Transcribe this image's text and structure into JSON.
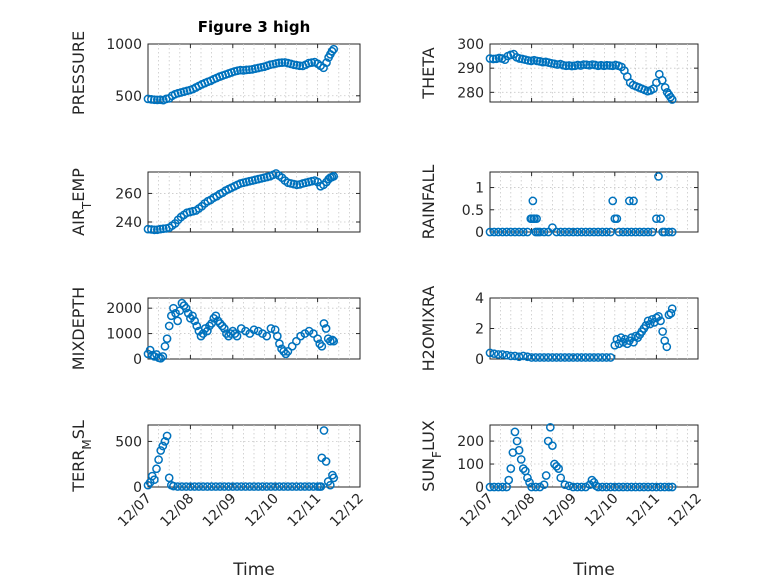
{
  "chart_data": [
    {
      "id": "pressure",
      "type": "scatter",
      "title": "Figure 3 high",
      "ylabel": "PRESSURE",
      "ylim": [
        440,
        1000
      ],
      "yticks": [
        500,
        1000
      ],
      "xlim": [
        0,
        5
      ],
      "xtick_labels": [],
      "xlabel": "",
      "x": [
        0.0,
        0.08,
        0.15,
        0.22,
        0.29,
        0.36,
        0.43,
        0.5,
        0.57,
        0.64,
        0.71,
        0.78,
        0.85,
        0.92,
        0.99,
        1.06,
        1.13,
        1.2,
        1.27,
        1.34,
        1.41,
        1.48,
        1.55,
        1.62,
        1.69,
        1.76,
        1.83,
        1.9,
        1.97,
        2.04,
        2.11,
        2.18,
        2.25,
        2.32,
        2.39,
        2.46,
        2.53,
        2.6,
        2.67,
        2.74,
        2.81,
        2.88,
        2.95,
        3.02,
        3.09,
        3.16,
        3.23,
        3.3,
        3.37,
        3.44,
        3.51,
        3.58,
        3.65,
        3.72,
        3.79,
        3.86,
        3.93,
        4.0,
        4.07,
        4.14,
        4.21,
        4.26,
        4.3,
        4.34,
        4.38
      ],
      "y": [
        470,
        465,
        462,
        460,
        462,
        458,
        470,
        475,
        500,
        515,
        525,
        532,
        540,
        548,
        555,
        565,
        580,
        595,
        610,
        622,
        635,
        645,
        660,
        672,
        685,
        695,
        705,
        715,
        725,
        735,
        742,
        748,
        745,
        750,
        752,
        755,
        762,
        768,
        775,
        780,
        790,
        800,
        805,
        812,
        818,
        820,
        822,
        815,
        808,
        800,
        795,
        790,
        788,
        800,
        815,
        820,
        825,
        810,
        790,
        770,
        820,
        870,
        900,
        930,
        950
      ]
    },
    {
      "id": "theta",
      "type": "scatter",
      "title": "",
      "ylabel": "THETA",
      "ylim": [
        276,
        300
      ],
      "yticks": [
        280,
        290,
        300
      ],
      "xlim": [
        0,
        5
      ],
      "xtick_labels": [],
      "xlabel": "",
      "x": [
        0.0,
        0.08,
        0.15,
        0.22,
        0.29,
        0.36,
        0.43,
        0.5,
        0.57,
        0.64,
        0.71,
        0.78,
        0.85,
        0.92,
        0.99,
        1.06,
        1.13,
        1.2,
        1.27,
        1.34,
        1.41,
        1.48,
        1.55,
        1.62,
        1.69,
        1.76,
        1.83,
        1.9,
        1.97,
        2.04,
        2.11,
        2.18,
        2.25,
        2.32,
        2.39,
        2.46,
        2.53,
        2.6,
        2.67,
        2.74,
        2.81,
        2.88,
        2.95,
        3.02,
        3.09,
        3.16,
        3.23,
        3.3,
        3.37,
        3.44,
        3.51,
        3.58,
        3.65,
        3.72,
        3.79,
        3.86,
        3.93,
        4.0,
        4.07,
        4.14,
        4.21,
        4.26,
        4.3,
        4.34,
        4.38
      ],
      "y": [
        294.0,
        293.8,
        293.9,
        294.2,
        294.0,
        293.5,
        295.0,
        295.5,
        295.8,
        294.5,
        294.0,
        293.8,
        293.5,
        293.2,
        293.0,
        293.3,
        293.0,
        292.8,
        292.5,
        292.6,
        292.3,
        292.0,
        291.8,
        291.5,
        291.7,
        291.2,
        291.0,
        291.1,
        290.9,
        291.0,
        291.3,
        291.1,
        291.5,
        291.4,
        291.2,
        291.5,
        291.3,
        291.0,
        291.2,
        291.0,
        291.2,
        291.1,
        291.0,
        291.3,
        291.0,
        290.5,
        289.0,
        286.5,
        284.0,
        283.0,
        282.5,
        282.0,
        281.5,
        281.0,
        280.5,
        280.8,
        281.5,
        284.0,
        287.5,
        285.0,
        282.0,
        280.0,
        279.0,
        278.0,
        277.0
      ]
    },
    {
      "id": "air_temp",
      "type": "scatter",
      "title": "",
      "ylabel_parts": [
        "AIR",
        "T",
        "EMP"
      ],
      "ylim": [
        233,
        275
      ],
      "yticks": [
        240,
        260
      ],
      "xlim": [
        0,
        5
      ],
      "xtick_labels": [],
      "xlabel": "",
      "x": [
        0.0,
        0.08,
        0.15,
        0.22,
        0.29,
        0.36,
        0.43,
        0.5,
        0.57,
        0.64,
        0.71,
        0.78,
        0.85,
        0.92,
        0.99,
        1.06,
        1.13,
        1.2,
        1.27,
        1.34,
        1.41,
        1.48,
        1.55,
        1.62,
        1.69,
        1.76,
        1.83,
        1.9,
        1.97,
        2.04,
        2.11,
        2.18,
        2.25,
        2.32,
        2.39,
        2.46,
        2.53,
        2.6,
        2.67,
        2.74,
        2.81,
        2.88,
        2.95,
        3.02,
        3.09,
        3.16,
        3.23,
        3.3,
        3.37,
        3.44,
        3.51,
        3.58,
        3.65,
        3.72,
        3.79,
        3.86,
        3.93,
        4.0,
        4.07,
        4.14,
        4.21,
        4.26,
        4.3,
        4.34,
        4.38
      ],
      "y": [
        235.0,
        234.8,
        234.5,
        234.6,
        235.0,
        235.3,
        235.5,
        236.0,
        237.5,
        239.0,
        241.5,
        243.5,
        245.0,
        246.5,
        247.0,
        247.5,
        248.0,
        249.5,
        251.0,
        253.0,
        254.5,
        255.5,
        257.0,
        258.0,
        259.5,
        260.5,
        262.0,
        263.0,
        264.0,
        265.0,
        266.0,
        267.0,
        267.5,
        268.0,
        268.5,
        269.0,
        269.5,
        270.0,
        270.5,
        271.0,
        271.5,
        272.0,
        273.0,
        274.0,
        272.5,
        271.0,
        269.0,
        267.5,
        267.0,
        266.5,
        266.0,
        266.3,
        267.0,
        267.5,
        268.0,
        268.5,
        269.0,
        268.0,
        265.0,
        266.0,
        268.0,
        270.0,
        271.0,
        271.5,
        272.0
      ]
    },
    {
      "id": "rainfall",
      "type": "scatter",
      "title": "",
      "ylabel": "RAINFALL",
      "ylim": [
        0,
        1.35
      ],
      "yticks": [
        0,
        0.5,
        1
      ],
      "xlim": [
        0,
        5
      ],
      "xtick_labels": [],
      "xlabel": "",
      "x": [
        0.0,
        0.1,
        0.2,
        0.3,
        0.4,
        0.5,
        0.6,
        0.7,
        0.8,
        0.9,
        0.98,
        1.0,
        1.03,
        1.05,
        1.07,
        1.1,
        1.12,
        1.15,
        1.2,
        1.3,
        1.4,
        1.5,
        1.6,
        1.7,
        1.8,
        1.9,
        2.0,
        2.1,
        2.2,
        2.3,
        2.4,
        2.5,
        2.6,
        2.7,
        2.8,
        2.9,
        2.95,
        3.0,
        3.05,
        3.1,
        3.2,
        3.3,
        3.35,
        3.4,
        3.45,
        3.5,
        3.6,
        3.7,
        3.8,
        3.9,
        4.0,
        4.05,
        4.1,
        4.15,
        4.2,
        4.3,
        4.38
      ],
      "y": [
        0,
        0,
        0,
        0,
        0,
        0,
        0,
        0,
        0,
        0,
        0.3,
        0.3,
        0.7,
        0.3,
        0.3,
        0,
        0.3,
        0,
        0,
        0,
        0,
        0.1,
        0,
        0,
        0,
        0,
        0,
        0,
        0,
        0,
        0,
        0,
        0,
        0,
        0,
        0,
        0.7,
        0.3,
        0.3,
        0,
        0,
        0,
        0.7,
        0,
        0.7,
        0,
        0,
        0,
        0,
        0,
        0.3,
        1.25,
        0.3,
        0,
        0,
        0,
        0
      ]
    },
    {
      "id": "mixdepth",
      "type": "scatter",
      "title": "",
      "ylabel": "MIXDEPTH",
      "ylim": [
        0,
        2400
      ],
      "yticks": [
        0,
        1000,
        2000
      ],
      "xlim": [
        0,
        5
      ],
      "xtick_labels": [],
      "xlabel": "",
      "x": [
        0.0,
        0.05,
        0.1,
        0.15,
        0.2,
        0.25,
        0.3,
        0.35,
        0.4,
        0.45,
        0.5,
        0.55,
        0.6,
        0.65,
        0.7,
        0.75,
        0.8,
        0.85,
        0.9,
        0.95,
        1.0,
        1.05,
        1.1,
        1.15,
        1.2,
        1.25,
        1.3,
        1.35,
        1.4,
        1.45,
        1.5,
        1.55,
        1.6,
        1.65,
        1.7,
        1.75,
        1.8,
        1.85,
        1.9,
        1.95,
        2.0,
        2.05,
        2.1,
        2.2,
        2.3,
        2.4,
        2.5,
        2.6,
        2.7,
        2.8,
        2.9,
        3.0,
        3.05,
        3.1,
        3.15,
        3.2,
        3.25,
        3.3,
        3.4,
        3.5,
        3.6,
        3.7,
        3.8,
        3.9,
        4.0,
        4.05,
        4.1,
        4.15,
        4.2,
        4.25,
        4.3,
        4.35,
        4.38
      ],
      "y": [
        200,
        350,
        150,
        100,
        180,
        50,
        30,
        100,
        500,
        800,
        1300,
        1700,
        2000,
        1800,
        1500,
        1900,
        2200,
        2100,
        2000,
        1800,
        1600,
        1700,
        1500,
        1300,
        1100,
        900,
        1000,
        1200,
        1100,
        1300,
        1400,
        1600,
        1700,
        1500,
        1400,
        1300,
        1200,
        1000,
        900,
        1000,
        1100,
        1000,
        900,
        1200,
        1100,
        1000,
        1150,
        1100,
        1000,
        900,
        1200,
        1150,
        900,
        600,
        400,
        300,
        200,
        300,
        500,
        700,
        900,
        1000,
        1100,
        1000,
        800,
        600,
        500,
        1400,
        1200,
        800,
        700,
        750,
        700
      ]
    },
    {
      "id": "h2omixra",
      "type": "scatter",
      "title": "",
      "ylabel": "H2OMIXRA",
      "ylim": [
        0,
        4
      ],
      "yticks": [
        0,
        2,
        4
      ],
      "xlim": [
        0,
        5
      ],
      "xtick_labels": [],
      "xlabel": "",
      "x": [
        0.0,
        0.1,
        0.2,
        0.3,
        0.4,
        0.5,
        0.6,
        0.7,
        0.8,
        0.9,
        1.0,
        1.1,
        1.2,
        1.3,
        1.4,
        1.5,
        1.6,
        1.7,
        1.8,
        1.9,
        2.0,
        2.1,
        2.2,
        2.3,
        2.4,
        2.5,
        2.6,
        2.7,
        2.8,
        2.9,
        3.0,
        3.05,
        3.1,
        3.15,
        3.2,
        3.25,
        3.3,
        3.35,
        3.4,
        3.45,
        3.5,
        3.55,
        3.6,
        3.65,
        3.7,
        3.75,
        3.8,
        3.85,
        3.9,
        3.95,
        4.0,
        4.05,
        4.1,
        4.15,
        4.2,
        4.25,
        4.3,
        4.35,
        4.38
      ],
      "y": [
        0.4,
        0.35,
        0.3,
        0.3,
        0.25,
        0.2,
        0.2,
        0.15,
        0.2,
        0.15,
        0.1,
        0.1,
        0.1,
        0.1,
        0.1,
        0.1,
        0.1,
        0.1,
        0.1,
        0.1,
        0.1,
        0.1,
        0.1,
        0.1,
        0.1,
        0.1,
        0.1,
        0.1,
        0.1,
        0.1,
        0.9,
        1.3,
        1.0,
        1.4,
        1.1,
        1.3,
        1.0,
        1.2,
        1.4,
        1.1,
        1.5,
        1.4,
        1.6,
        1.8,
        2.0,
        2.2,
        2.5,
        2.3,
        2.6,
        2.4,
        2.7,
        2.8,
        2.5,
        1.8,
        1.2,
        0.8,
        2.9,
        3.0,
        3.3
      ]
    },
    {
      "id": "terr_msl",
      "type": "scatter",
      "title": "",
      "ylabel_parts": [
        "TERR",
        "M",
        "SL"
      ],
      "ylim": [
        0,
        680
      ],
      "yticks": [
        0,
        500
      ],
      "xlim": [
        0,
        5
      ],
      "xtick_labels": [
        "12/07",
        "12/08",
        "12/09",
        "12/10",
        "12/11",
        "12/12"
      ],
      "xlabel": "Time",
      "x": [
        0.0,
        0.05,
        0.1,
        0.15,
        0.2,
        0.25,
        0.3,
        0.35,
        0.4,
        0.45,
        0.5,
        0.55,
        0.6,
        0.7,
        0.8,
        0.9,
        1.0,
        1.1,
        1.2,
        1.3,
        1.4,
        1.5,
        1.6,
        1.7,
        1.8,
        1.9,
        2.0,
        2.1,
        2.2,
        2.3,
        2.4,
        2.5,
        2.6,
        2.7,
        2.8,
        2.9,
        3.0,
        3.1,
        3.2,
        3.3,
        3.4,
        3.5,
        3.6,
        3.7,
        3.8,
        3.9,
        4.0,
        4.05,
        4.08,
        4.1,
        4.15,
        4.2,
        4.25,
        4.3,
        4.35,
        4.38
      ],
      "y": [
        20,
        50,
        120,
        80,
        200,
        300,
        400,
        450,
        500,
        560,
        100,
        20,
        10,
        5,
        5,
        5,
        5,
        5,
        5,
        5,
        5,
        5,
        5,
        5,
        5,
        5,
        5,
        5,
        5,
        5,
        5,
        5,
        5,
        5,
        5,
        5,
        5,
        5,
        5,
        5,
        5,
        5,
        5,
        5,
        5,
        5,
        5,
        5,
        5,
        320,
        620,
        280,
        60,
        20,
        130,
        100
      ]
    },
    {
      "id": "sun_flux",
      "type": "scatter",
      "title": "",
      "ylabel_parts": [
        "SUN",
        "F",
        "LUX"
      ],
      "ylim": [
        0,
        270
      ],
      "yticks": [
        0,
        100,
        200
      ],
      "xlim": [
        0,
        5
      ],
      "xtick_labels": [
        "12/07",
        "12/08",
        "12/09",
        "12/10",
        "12/11",
        "12/12"
      ],
      "xlabel": "Time",
      "x": [
        0.0,
        0.1,
        0.2,
        0.3,
        0.4,
        0.45,
        0.5,
        0.55,
        0.6,
        0.65,
        0.7,
        0.75,
        0.8,
        0.85,
        0.9,
        0.95,
        1.0,
        1.1,
        1.2,
        1.3,
        1.35,
        1.4,
        1.45,
        1.5,
        1.55,
        1.6,
        1.65,
        1.7,
        1.8,
        1.9,
        2.0,
        2.1,
        2.2,
        2.3,
        2.4,
        2.45,
        2.5,
        2.55,
        2.6,
        2.7,
        2.8,
        2.9,
        3.0,
        3.1,
        3.2,
        3.3,
        3.4,
        3.5,
        3.6,
        3.7,
        3.8,
        3.9,
        4.0,
        4.1,
        4.2,
        4.3,
        4.38
      ],
      "y": [
        0,
        0,
        0,
        0,
        0,
        30,
        80,
        150,
        240,
        200,
        160,
        120,
        80,
        70,
        40,
        20,
        0,
        0,
        0,
        10,
        50,
        200,
        260,
        180,
        100,
        90,
        80,
        40,
        10,
        5,
        0,
        0,
        0,
        0,
        10,
        30,
        20,
        5,
        0,
        0,
        0,
        0,
        0,
        0,
        0,
        0,
        0,
        0,
        0,
        0,
        0,
        0,
        0,
        0,
        0,
        0,
        0
      ]
    }
  ]
}
